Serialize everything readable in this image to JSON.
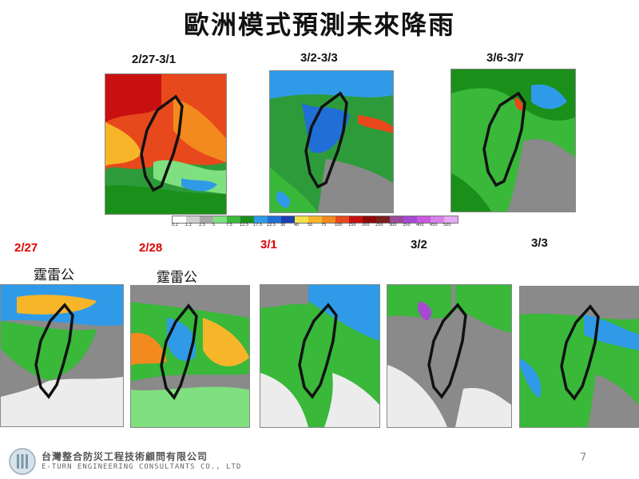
{
  "title": "歐洲模式預測未來降雨",
  "top_periods": [
    "2/27-3/1",
    "3/2-3/3",
    "3/6-3/7"
  ],
  "daily": [
    {
      "date": "2/27",
      "color": "#e00000",
      "note": "霆雷公"
    },
    {
      "date": "2/28",
      "color": "#e00000",
      "note": "霆雷公"
    },
    {
      "date": "3/1",
      "color": "#e00000",
      "note": ""
    },
    {
      "date": "3/2",
      "color": "#111111",
      "note": ""
    },
    {
      "date": "3/3",
      "color": "#111111",
      "note": ""
    }
  ],
  "colorbar": {
    "ticks": [
      "0.2",
      "1.2",
      "2.5",
      "5",
      "7.5",
      "12.5",
      "17.5",
      "22.5",
      "30",
      "40",
      "50",
      "75",
      "100",
      "150",
      "200",
      "250",
      "300",
      "350",
      "400",
      "450",
      "500"
    ],
    "colors": [
      "#ffffff",
      "#cfcfcf",
      "#a8a8a8",
      "#7fe07f",
      "#39b839",
      "#1a8f1a",
      "#2f9be8",
      "#1f6fd6",
      "#1a3fb0",
      "#f4e04a",
      "#f7b529",
      "#f28a1f",
      "#e8491c",
      "#c81010",
      "#8e0a0a",
      "#7a1f1f",
      "#9a4a9a",
      "#a64ad1",
      "#c85ae0",
      "#d982ec",
      "#e6a9f4"
    ]
  },
  "footer": {
    "company_cn": "台灣整合防災工程技術顧問有限公司",
    "company_en": "E-TURN ENGINEERING CONSULTANTS CO., LTD",
    "page": "7"
  }
}
